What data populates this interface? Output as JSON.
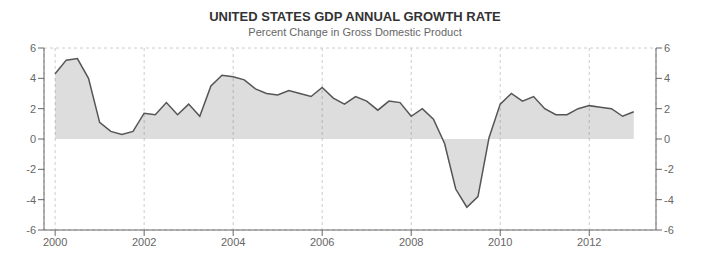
{
  "chart_data": {
    "type": "area",
    "title": "UNITED STATES GDP ANNUAL GROWTH RATE",
    "subtitle": "Percent Change in Gross Domestic Product",
    "color": "#555555",
    "grid": true,
    "x": [
      2000.0,
      2000.25,
      2000.5,
      2000.75,
      2001.0,
      2001.25,
      2001.5,
      2001.75,
      2002.0,
      2002.25,
      2002.5,
      2002.75,
      2003.0,
      2003.25,
      2003.5,
      2003.75,
      2004.0,
      2004.25,
      2004.5,
      2004.75,
      2005.0,
      2005.25,
      2005.5,
      2005.75,
      2006.0,
      2006.25,
      2006.5,
      2006.75,
      2007.0,
      2007.25,
      2007.5,
      2007.75,
      2008.0,
      2008.25,
      2008.5,
      2008.75,
      2009.0,
      2009.25,
      2009.5,
      2009.75,
      2010.0,
      2010.25,
      2010.5,
      2010.75,
      2011.0,
      2011.25,
      2011.5,
      2011.75,
      2012.0,
      2012.25,
      2012.5,
      2012.75,
      2013.0
    ],
    "values": [
      4.3,
      5.2,
      5.3,
      4.0,
      1.1,
      0.5,
      0.3,
      0.5,
      1.7,
      1.6,
      2.4,
      1.6,
      2.3,
      1.5,
      3.5,
      4.2,
      4.1,
      3.9,
      3.3,
      3.0,
      2.9,
      3.2,
      3.0,
      2.8,
      3.4,
      2.7,
      2.3,
      2.8,
      2.5,
      1.9,
      2.5,
      2.4,
      1.5,
      2.0,
      1.3,
      -0.3,
      -3.3,
      -4.5,
      -3.8,
      0.1,
      2.3,
      3.0,
      2.5,
      2.8,
      2.0,
      1.6,
      1.6,
      2.0,
      2.2,
      2.1,
      2.0,
      1.5,
      1.8
    ],
    "xlim": [
      1999.75,
      2013.5
    ],
    "xticks": [
      2000,
      2002,
      2004,
      2006,
      2008,
      2010,
      2012
    ],
    "ylim": [
      -6,
      6
    ],
    "yticks": [
      -6,
      -4,
      -2,
      0,
      2,
      4,
      6
    ],
    "y2lim": [
      -6,
      6
    ],
    "y2ticks": [
      -6,
      -4,
      -2,
      0,
      2,
      4,
      6
    ]
  }
}
